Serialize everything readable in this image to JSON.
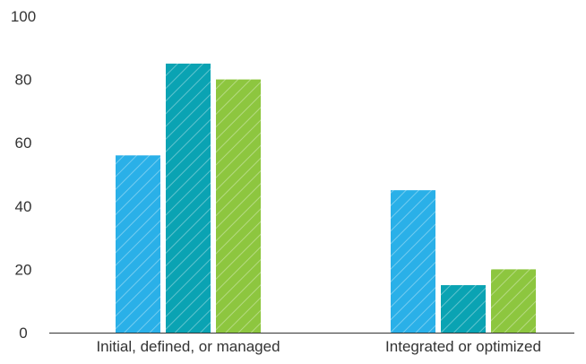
{
  "chart_data": {
    "type": "bar",
    "categories": [
      "Initial, defined, or managed",
      "Integrated or optimized"
    ],
    "series": [
      {
        "values": [
          56,
          45
        ],
        "color": "#2ab0e8"
      },
      {
        "values": [
          85,
          15
        ],
        "color": "#0aa3b3"
      },
      {
        "values": [
          80,
          20
        ],
        "color": "#8dc63f"
      }
    ],
    "ylim": [
      0,
      100
    ],
    "yticks": [
      0,
      20,
      40,
      60,
      80,
      100
    ],
    "grid": false,
    "bar_pattern": "diagonal-hatch",
    "axis_color": "#333333"
  }
}
